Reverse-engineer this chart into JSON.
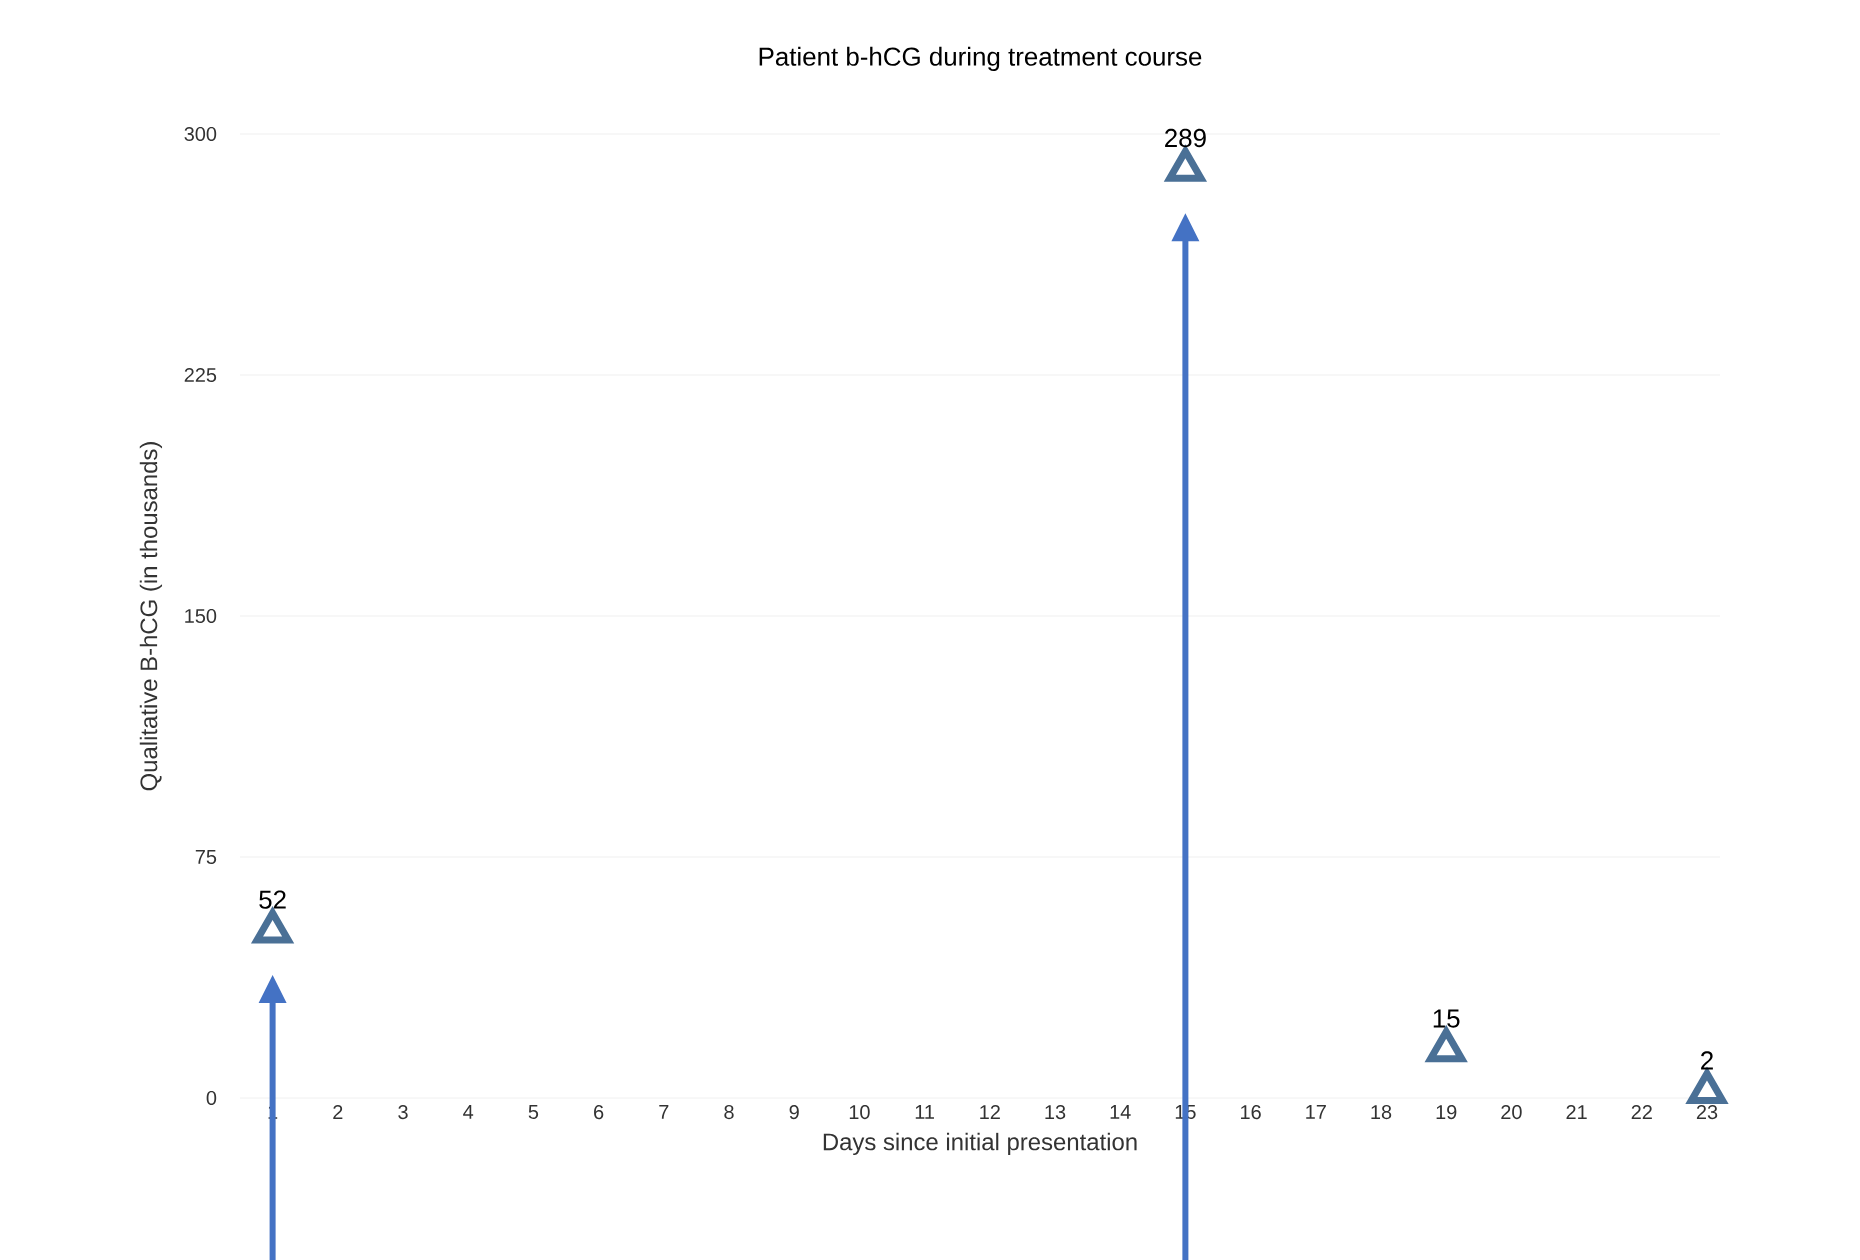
{
  "chart_data": {
    "type": "scatter",
    "title": "Patient b-hCG during treatment course",
    "xlabel": "Days since initial presentation",
    "ylabel": "Qualitative B-hCG (in thousands)",
    "x": [
      1,
      15,
      19,
      23
    ],
    "values": [
      52,
      289,
      15,
      2
    ],
    "color": "#4a7096",
    "xlim": [
      0.5,
      23.2
    ],
    "xticks": [
      1,
      2,
      3,
      4,
      5,
      6,
      7,
      8,
      9,
      10,
      11,
      12,
      13,
      14,
      15,
      16,
      17,
      18,
      19,
      20,
      21,
      22,
      23
    ],
    "ylim": [
      0,
      300
    ],
    "yticks": [
      0,
      75,
      150,
      225,
      300
    ],
    "grid": "y",
    "marker": "triangle",
    "data_labels": true
  }
}
